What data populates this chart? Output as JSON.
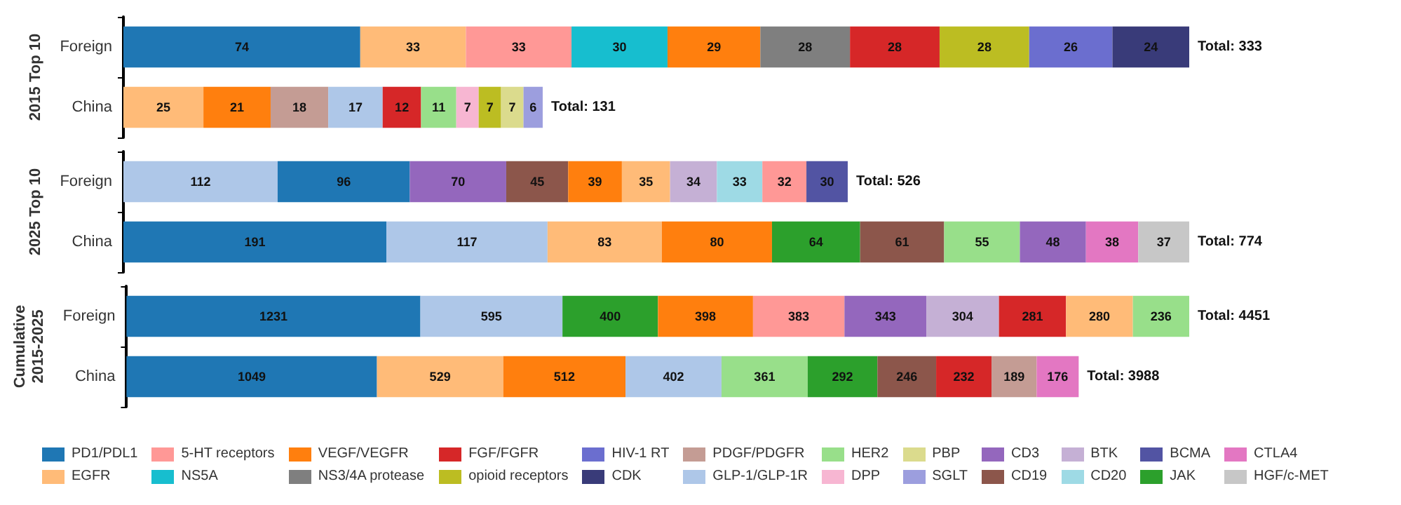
{
  "chart_data": [
    {
      "type": "bar",
      "orientation": "horizontal",
      "stacked": true,
      "data_labels": true,
      "tick_labels": "y",
      "legend": "bottom",
      "ylabel": "2015 Top 10",
      "categories": [
        "Foreign",
        "China"
      ],
      "totals": [
        "Total: 333",
        "Total: 131"
      ],
      "series": [
        {
          "name": "PD1/PDL1",
          "color": "#1f77b4",
          "values": [
            74,
            null
          ]
        },
        {
          "name": "EGFR",
          "color": "#ffbb78",
          "values": [
            33,
            null
          ]
        },
        {
          "name": "5-HT receptors",
          "color": "#ff9896",
          "values": [
            33,
            null
          ]
        },
        {
          "name": "NS5A",
          "color": "#17becf",
          "values": [
            30,
            null
          ]
        },
        {
          "name": "VEGF/VEGFR",
          "color": "#ff7f0e",
          "values": [
            29,
            null
          ]
        },
        {
          "name": "NS3/4A protease",
          "color": "#7f7f7f",
          "values": [
            28,
            null
          ]
        },
        {
          "name": "FGF/FGFR",
          "color": "#d62728",
          "values": [
            28,
            null
          ]
        },
        {
          "name": "opioid receptors",
          "color": "#bcbd22",
          "values": [
            28,
            null
          ]
        },
        {
          "name": "HIV-1 RT",
          "color": "#6b6ecf",
          "values": [
            26,
            null
          ]
        },
        {
          "name": "CDK",
          "color": "#393b79",
          "values": [
            24,
            null
          ]
        },
        {
          "color": "#ffbb78",
          "values": [
            null,
            25
          ]
        },
        {
          "color": "#ff7f0e",
          "values": [
            null,
            21
          ]
        },
        {
          "name": "PDGF/PDGFR",
          "color": "#c49c94",
          "values": [
            null,
            18
          ]
        },
        {
          "name": "GLP-1/GLP-1R",
          "color": "#aec7e8",
          "values": [
            null,
            17
          ]
        },
        {
          "color": "#d62728",
          "values": [
            null,
            12
          ]
        },
        {
          "name": "HER2",
          "color": "#98df8a",
          "values": [
            null,
            11
          ]
        },
        {
          "name": "DPP",
          "color": "#f7b6d2",
          "values": [
            null,
            7
          ]
        },
        {
          "color": "#bcbd22",
          "values": [
            null,
            7
          ]
        },
        {
          "name": "PBP",
          "color": "#dbdb8d",
          "values": [
            null,
            7
          ]
        },
        {
          "name": "SGLT",
          "color": "#9c9ede",
          "values": [
            null,
            6
          ]
        }
      ]
    },
    {
      "type": "bar",
      "orientation": "horizontal",
      "stacked": true,
      "data_labels": true,
      "tick_labels": "y",
      "legend": "bottom",
      "ylabel": "2025 Top 10",
      "categories": [
        "Foreign",
        "China"
      ],
      "totals": [
        "Total: 526",
        "Total: 774"
      ],
      "series": [
        {
          "name": "GLP-1/GLP-1R",
          "color": "#aec7e8",
          "values": [
            112,
            null
          ]
        },
        {
          "name": "PD1/PDL1",
          "color": "#1f77b4",
          "values": [
            96,
            null
          ]
        },
        {
          "name": "CD3",
          "color": "#9467bd",
          "values": [
            70,
            null
          ]
        },
        {
          "name": "CD19",
          "color": "#8c564b",
          "values": [
            45,
            null
          ]
        },
        {
          "name": "VEGF/VEGFR",
          "color": "#ff7f0e",
          "values": [
            39,
            null
          ]
        },
        {
          "name": "EGFR",
          "color": "#ffbb78",
          "values": [
            35,
            null
          ]
        },
        {
          "name": "BTK",
          "color": "#c5b0d5",
          "values": [
            34,
            null
          ]
        },
        {
          "name": "CD20",
          "color": "#9edae5",
          "values": [
            33,
            null
          ]
        },
        {
          "name": "5-HT receptors",
          "color": "#ff9896",
          "values": [
            32,
            null
          ]
        },
        {
          "name": "BCMA",
          "color": "#5254a3",
          "values": [
            30,
            null
          ]
        },
        {
          "name": "PD1/PDL1",
          "color": "#1f77b4",
          "values": [
            null,
            191
          ]
        },
        {
          "name": "GLP-1/GLP-1R",
          "color": "#aec7e8",
          "values": [
            null,
            117
          ]
        },
        {
          "name": "EGFR",
          "color": "#ffbb78",
          "values": [
            null,
            83
          ]
        },
        {
          "name": "VEGF/VEGFR",
          "color": "#ff7f0e",
          "values": [
            null,
            80
          ]
        },
        {
          "name": "JAK",
          "color": "#2ca02c",
          "values": [
            null,
            64
          ]
        },
        {
          "color": "#8c564b",
          "values": [
            null,
            61
          ]
        },
        {
          "name": "HER2",
          "color": "#98df8a",
          "values": [
            null,
            55
          ]
        },
        {
          "color": "#9467bd",
          "values": [
            null,
            48
          ]
        },
        {
          "name": "CTLA4",
          "color": "#e377c2",
          "values": [
            null,
            38
          ]
        },
        {
          "name": "HGF/c-MET",
          "color": "#c7c7c7",
          "values": [
            null,
            37
          ]
        }
      ]
    },
    {
      "type": "bar",
      "orientation": "horizontal",
      "stacked": true,
      "data_labels": true,
      "tick_labels": "y",
      "legend": "bottom",
      "ylabel": "Cumulative 2015-2025",
      "categories": [
        "Foreign",
        "China"
      ],
      "totals": [
        "Total: 4451",
        "Total: 3988"
      ],
      "series": [
        {
          "name": "PD1/PDL1",
          "color": "#1f77b4",
          "values": [
            1231,
            null
          ]
        },
        {
          "name": "GLP-1/GLP-1R",
          "color": "#aec7e8",
          "values": [
            595,
            null
          ]
        },
        {
          "name": "JAK",
          "color": "#2ca02c",
          "values": [
            400,
            null
          ]
        },
        {
          "name": "VEGF/VEGFR",
          "color": "#ff7f0e",
          "values": [
            398,
            null
          ]
        },
        {
          "name": "5-HT receptors",
          "color": "#ff9896",
          "values": [
            383,
            null
          ]
        },
        {
          "name": "CD3",
          "color": "#9467bd",
          "values": [
            343,
            null
          ]
        },
        {
          "name": "BTK",
          "color": "#c5b0d5",
          "values": [
            304,
            null
          ]
        },
        {
          "name": "FGF/FGFR",
          "color": "#d62728",
          "values": [
            281,
            null
          ]
        },
        {
          "name": "EGFR",
          "color": "#ffbb78",
          "values": [
            280,
            null
          ]
        },
        {
          "name": "HER2",
          "color": "#98df8a",
          "values": [
            236,
            null
          ]
        },
        {
          "name": "PD1/PDL1",
          "color": "#1f77b4",
          "values": [
            null,
            1049
          ]
        },
        {
          "name": "EGFR",
          "color": "#ffbb78",
          "values": [
            null,
            529
          ]
        },
        {
          "name": "VEGF/VEGFR",
          "color": "#ff7f0e",
          "values": [
            null,
            512
          ]
        },
        {
          "name": "GLP-1/GLP-1R",
          "color": "#aec7e8",
          "values": [
            null,
            402
          ]
        },
        {
          "name": "HER2",
          "color": "#98df8a",
          "values": [
            null,
            361
          ]
        },
        {
          "name": "JAK",
          "color": "#2ca02c",
          "values": [
            null,
            292
          ]
        },
        {
          "name": "CD19",
          "color": "#8c564b",
          "values": [
            null,
            246
          ]
        },
        {
          "name": "FGF/FGFR",
          "color": "#d62728",
          "values": [
            null,
            232
          ]
        },
        {
          "name": "PDGF/PDGFR",
          "color": "#c49c94",
          "values": [
            null,
            189
          ]
        },
        {
          "name": "CTLA4",
          "color": "#e377c2",
          "values": [
            null,
            176
          ]
        }
      ]
    }
  ]
}
